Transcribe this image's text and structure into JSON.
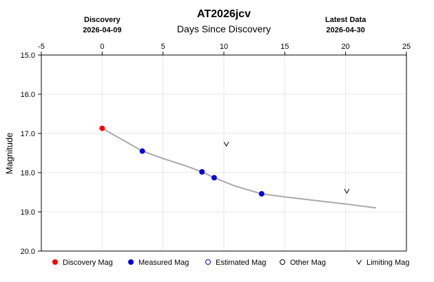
{
  "chart_data": {
    "type": "scatter",
    "title": "AT2026jcv",
    "xlabel": "Days Since Discovery",
    "ylabel": "Magnitude",
    "xlim": [
      -5,
      25
    ],
    "ylim": [
      15.0,
      20.0
    ],
    "y_inverted": true,
    "grid": true,
    "x_ticks": [
      -5,
      0,
      5,
      10,
      15,
      20,
      25
    ],
    "y_ticks": [
      "15.0",
      "16.0",
      "17.0",
      "18.0",
      "19.0",
      "20.0"
    ],
    "discovery": {
      "label": "Discovery",
      "date": "2026-04-09",
      "x": 0
    },
    "latest": {
      "label": "Latest Data",
      "date": "2026-04-30",
      "x": 20
    },
    "series": [
      {
        "name": "Discovery Mag",
        "color": "#ff0000",
        "points": [
          {
            "x": 0.0,
            "y": 16.87
          }
        ]
      },
      {
        "name": "Measured Mag",
        "color": "#0000dd",
        "points": [
          {
            "x": 3.3,
            "y": 17.45
          },
          {
            "x": 8.2,
            "y": 17.98
          },
          {
            "x": 9.2,
            "y": 18.13
          },
          {
            "x": 13.1,
            "y": 18.54
          }
        ]
      },
      {
        "name": "Limiting Mag",
        "color": "#000000",
        "marker": "v",
        "points": [
          {
            "x": 10.2,
            "y": 17.27
          },
          {
            "x": 20.1,
            "y": 18.47
          }
        ]
      }
    ],
    "model_curve": {
      "color": "#a9a9a9",
      "points": [
        {
          "x": 0.0,
          "y": 16.87
        },
        {
          "x": 3.3,
          "y": 17.45
        },
        {
          "x": 5.0,
          "y": 17.64
        },
        {
          "x": 6.8,
          "y": 17.82
        },
        {
          "x": 8.2,
          "y": 17.98
        },
        {
          "x": 9.2,
          "y": 18.13
        },
        {
          "x": 11.0,
          "y": 18.35
        },
        {
          "x": 13.1,
          "y": 18.54
        },
        {
          "x": 15.0,
          "y": 18.62
        },
        {
          "x": 17.5,
          "y": 18.71
        },
        {
          "x": 20.0,
          "y": 18.8
        },
        {
          "x": 22.5,
          "y": 18.9
        }
      ]
    },
    "legend": {
      "placement": "bottom",
      "items": [
        {
          "label": "Discovery Mag",
          "marker": "filled-circle",
          "color": "#ff0000"
        },
        {
          "label": "Measured Mag",
          "marker": "filled-circle",
          "color": "#0000dd"
        },
        {
          "label": "Estimated Mag",
          "marker": "open-circle",
          "color": "#0000dd"
        },
        {
          "label": "Other Mag",
          "marker": "open-circle",
          "color": "#000000"
        },
        {
          "label": "Limiting Mag",
          "marker": "v",
          "color": "#000000"
        }
      ]
    }
  }
}
